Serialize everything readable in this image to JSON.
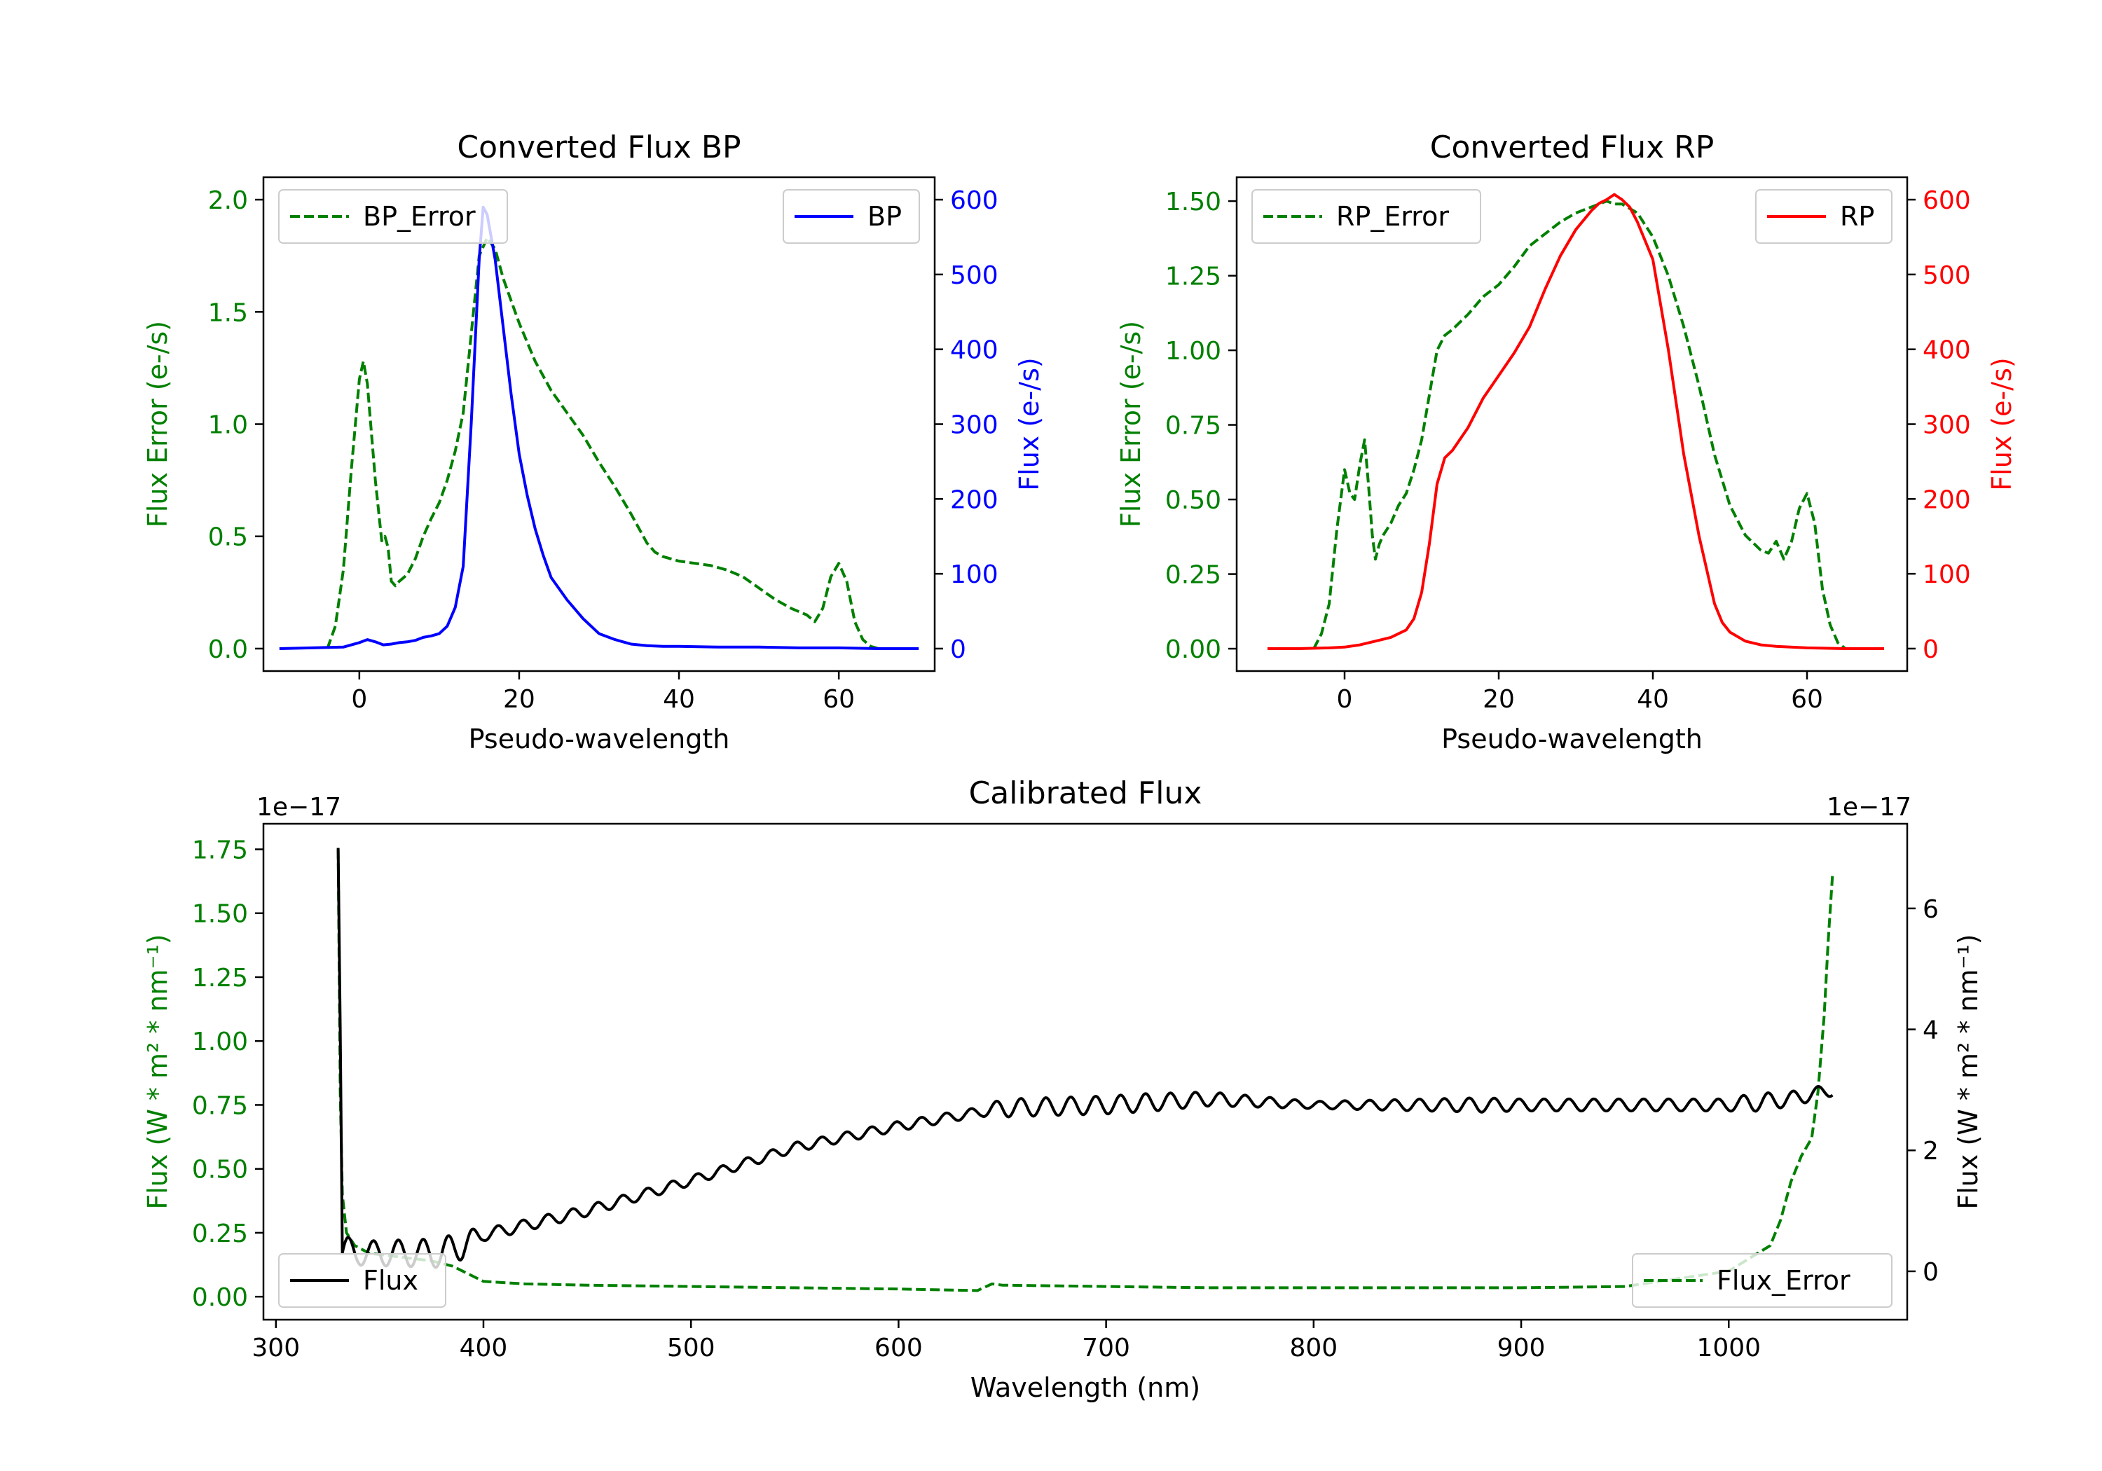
{
  "chart_data": [
    {
      "type": "line",
      "title": "Converted Flux BP",
      "xlabel": "Pseudo-wavelength",
      "xlim": [
        -12,
        72
      ],
      "xticks": [
        0,
        20,
        40,
        60
      ],
      "left_axis": {
        "label": "Flux Error (e-/s)",
        "color": "#008000",
        "ylim": [
          -0.1,
          2.1
        ],
        "ticks": [
          "0.0",
          "0.5",
          "1.0",
          "1.5",
          "2.0"
        ]
      },
      "right_axis": {
        "label": "Flux (e-/s)",
        "color": "#0000ff",
        "ylim": [
          -30,
          630
        ],
        "ticks": [
          "0",
          "100",
          "200",
          "300",
          "400",
          "500",
          "600"
        ]
      },
      "legend_left": {
        "label": "BP_Error",
        "style": "dashed",
        "color": "#008000",
        "loc": "upper left"
      },
      "legend_right": {
        "label": "BP",
        "style": "solid",
        "color": "#0000ff",
        "loc": "upper right"
      },
      "series": [
        {
          "name": "BP_Error",
          "axis": "left",
          "color": "#008000",
          "style": "dashed",
          "x": [
            -4,
            -3,
            -2,
            -1,
            0,
            0.5,
            1,
            2,
            2.8,
            3.2,
            3.6,
            4,
            4.5,
            5,
            6,
            7,
            8,
            9,
            10,
            11,
            12,
            13,
            14,
            15,
            16,
            17,
            18,
            19,
            20,
            22,
            24,
            26,
            28,
            30,
            32,
            34,
            36,
            37,
            38,
            40,
            42,
            44,
            46,
            48,
            50,
            52,
            54,
            56,
            57,
            58,
            59,
            60,
            61,
            62,
            63,
            64,
            65
          ],
          "y": [
            0,
            0.1,
            0.35,
            0.8,
            1.2,
            1.28,
            1.18,
            0.75,
            0.48,
            0.5,
            0.45,
            0.3,
            0.28,
            0.3,
            0.33,
            0.4,
            0.5,
            0.58,
            0.65,
            0.75,
            0.88,
            1.05,
            1.4,
            1.75,
            1.83,
            1.78,
            1.65,
            1.55,
            1.45,
            1.28,
            1.15,
            1.05,
            0.95,
            0.83,
            0.72,
            0.6,
            0.47,
            0.43,
            0.41,
            0.39,
            0.38,
            0.37,
            0.35,
            0.32,
            0.27,
            0.22,
            0.18,
            0.15,
            0.12,
            0.18,
            0.32,
            0.38,
            0.3,
            0.12,
            0.04,
            0.01,
            0
          ]
        },
        {
          "name": "BP",
          "axis": "right",
          "color": "#0000ff",
          "style": "solid",
          "x": [
            -10,
            -6,
            -2,
            0,
            1,
            2,
            3,
            4,
            5,
            6,
            7,
            8,
            9,
            10,
            11,
            12,
            13,
            14,
            15,
            15.5,
            16,
            17,
            18,
            19,
            20,
            21,
            22,
            23,
            24,
            26,
            28,
            30,
            32,
            34,
            36,
            38,
            40,
            45,
            50,
            55,
            60,
            65,
            70
          ],
          "y": [
            0,
            1,
            2,
            8,
            12,
            9,
            5,
            6,
            8,
            9,
            11,
            15,
            17,
            20,
            30,
            55,
            110,
            300,
            520,
            590,
            580,
            520,
            430,
            340,
            260,
            205,
            160,
            125,
            95,
            65,
            40,
            20,
            12,
            6,
            4,
            3,
            3,
            2,
            2,
            1,
            1,
            0,
            0
          ]
        }
      ]
    },
    {
      "type": "line",
      "title": "Converted Flux RP",
      "xlabel": "Pseudo-wavelength",
      "xlim": [
        -14,
        73
      ],
      "xticks": [
        0,
        20,
        40,
        60
      ],
      "left_axis": {
        "label": "Flux Error (e-/s)",
        "color": "#008000",
        "ylim": [
          -0.075,
          1.58
        ],
        "ticks": [
          "0.00",
          "0.25",
          "0.50",
          "0.75",
          "1.00",
          "1.25",
          "1.50"
        ]
      },
      "right_axis": {
        "label": "Flux (e-/s)",
        "color": "#ff0000",
        "ylim": [
          -30,
          630
        ],
        "ticks": [
          "0",
          "100",
          "200",
          "300",
          "400",
          "500",
          "600"
        ]
      },
      "legend_left": {
        "label": "RP_Error",
        "style": "dashed",
        "color": "#008000",
        "loc": "upper left"
      },
      "legend_right": {
        "label": "RP",
        "style": "solid",
        "color": "#ff0000",
        "loc": "upper right"
      },
      "series": [
        {
          "name": "RP_Error",
          "axis": "left",
          "color": "#008000",
          "style": "dashed",
          "x": [
            -4,
            -3,
            -2,
            -1,
            0,
            0.7,
            1.3,
            2,
            2.6,
            3.1,
            3.6,
            4,
            4.5,
            5,
            6,
            7,
            8,
            9,
            10,
            11,
            12,
            13,
            14,
            16,
            18,
            20,
            22,
            24,
            26,
            28,
            30,
            32,
            34,
            35,
            36,
            38,
            40,
            42,
            44,
            46,
            48,
            50,
            52,
            54,
            55,
            56,
            57,
            58,
            59,
            60,
            61,
            62,
            63,
            64,
            65
          ],
          "y": [
            0,
            0.05,
            0.15,
            0.4,
            0.6,
            0.52,
            0.5,
            0.62,
            0.7,
            0.55,
            0.38,
            0.3,
            0.35,
            0.38,
            0.42,
            0.48,
            0.52,
            0.6,
            0.7,
            0.85,
            1.0,
            1.05,
            1.07,
            1.12,
            1.18,
            1.22,
            1.28,
            1.35,
            1.39,
            1.43,
            1.46,
            1.48,
            1.5,
            1.49,
            1.49,
            1.46,
            1.38,
            1.25,
            1.08,
            0.88,
            0.65,
            0.48,
            0.38,
            0.33,
            0.32,
            0.36,
            0.3,
            0.36,
            0.47,
            0.52,
            0.42,
            0.2,
            0.08,
            0.02,
            0
          ]
        },
        {
          "name": "RP",
          "axis": "right",
          "color": "#ff0000",
          "style": "solid",
          "x": [
            -10,
            -6,
            -2,
            0,
            2,
            4,
            6,
            8,
            9,
            10,
            11,
            12,
            13,
            14,
            16,
            18,
            20,
            22,
            24,
            26,
            28,
            30,
            32,
            33,
            34,
            35,
            36,
            37,
            38,
            40,
            42,
            44,
            46,
            48,
            49,
            50,
            52,
            54,
            56,
            60,
            65,
            70
          ],
          "y": [
            0,
            0,
            1,
            2,
            5,
            10,
            15,
            25,
            40,
            75,
            140,
            220,
            255,
            265,
            295,
            335,
            365,
            395,
            430,
            480,
            525,
            560,
            585,
            595,
            600,
            607,
            600,
            590,
            570,
            520,
            400,
            260,
            150,
            60,
            35,
            22,
            10,
            5,
            3,
            1,
            0,
            0
          ]
        }
      ]
    },
    {
      "type": "line",
      "title": "Calibrated Flux",
      "xlabel": "Wavelength (nm)",
      "xlim": [
        294,
        1086
      ],
      "xticks": [
        300,
        400,
        500,
        600,
        700,
        800,
        900,
        1000
      ],
      "left_axis": {
        "label": "Flux (W * m² * nm⁻¹)",
        "color": "#008000",
        "ylim": [
          -0.09,
          1.85
        ],
        "ticks": [
          "0.00",
          "0.25",
          "0.50",
          "0.75",
          "1.00",
          "1.25",
          "1.50",
          "1.75"
        ],
        "offset": "1e−17"
      },
      "right_axis": {
        "label": "Flux (W * m² * nm⁻¹)",
        "color": "#000000",
        "ylim": [
          -0.8,
          7.4
        ],
        "ticks": [
          "0",
          "2",
          "4",
          "6"
        ],
        "offset": "1e−17"
      },
      "legend_left": {
        "label": "Flux",
        "style": "solid",
        "color": "#000000",
        "loc": "lower left"
      },
      "legend_right": {
        "label": "Flux_Error",
        "style": "dashed",
        "color": "#008000",
        "loc": "lower right"
      },
      "series": [
        {
          "name": "Flux_Error",
          "axis": "left",
          "color": "#008000",
          "style": "dashed",
          "x": [
            330,
            331,
            332,
            334,
            338,
            345,
            355,
            365,
            375,
            385,
            395,
            400,
            420,
            450,
            500,
            550,
            600,
            630,
            638,
            645,
            650,
            700,
            750,
            800,
            850,
            900,
            950,
            1000,
            1010,
            1020,
            1025,
            1030,
            1035,
            1040,
            1043,
            1046,
            1048,
            1050
          ],
          "y": [
            1.75,
            0.8,
            0.4,
            0.25,
            0.2,
            0.17,
            0.16,
            0.15,
            0.14,
            0.12,
            0.08,
            0.06,
            0.05,
            0.045,
            0.04,
            0.035,
            0.03,
            0.025,
            0.024,
            0.05,
            0.045,
            0.04,
            0.035,
            0.035,
            0.035,
            0.035,
            0.04,
            0.1,
            0.15,
            0.2,
            0.3,
            0.45,
            0.55,
            0.62,
            0.8,
            1.1,
            1.4,
            1.65
          ]
        },
        {
          "name": "Flux",
          "axis": "right",
          "color": "#000000",
          "style": "solid",
          "wave": {
            "x0": 330,
            "x1": 1050,
            "ripple_start": 332,
            "ripple_end": 1050,
            "base_x": [
              330,
              331,
              332,
              340,
              380,
              400,
              450,
              500,
              550,
              600,
              650,
              700,
              750,
              800,
              850,
              900,
              950,
              1000,
              1030,
              1050
            ],
            "base_y": [
              7.0,
              4.0,
              0.3,
              0.3,
              0.3,
              0.6,
              1.0,
              1.5,
              2.05,
              2.4,
              2.7,
              2.75,
              2.85,
              2.75,
              2.75,
              2.75,
              2.75,
              2.75,
              2.85,
              3.0
            ],
            "amp_x": [
              332,
              340,
              390,
              400,
              500,
              640,
              650,
              720,
              800,
              880,
              900,
              1000,
              1010,
              1050
            ],
            "amp_y": [
              0.3,
              0.2,
              0.25,
              0.1,
              0.08,
              0.08,
              0.15,
              0.15,
              0.06,
              0.12,
              0.1,
              0.1,
              0.15,
              0.1
            ],
            "period": 12
          }
        }
      ]
    }
  ]
}
